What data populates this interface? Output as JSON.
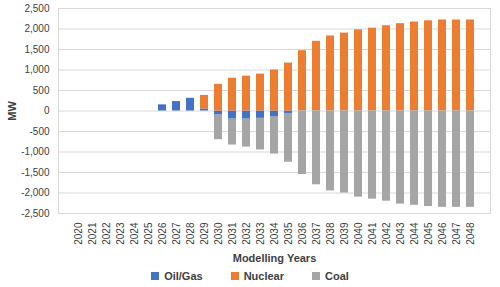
{
  "chart_data": {
    "type": "bar",
    "stacked": true,
    "grid": true,
    "legend": "bottom",
    "xlabel": "Modelling Years",
    "ylabel": "MW",
    "categories": [
      "2020",
      "2021",
      "2022",
      "2023",
      "2024",
      "2025",
      "2026",
      "2027",
      "2028",
      "2029",
      "2030",
      "2031",
      "2032",
      "2033",
      "2034",
      "2035",
      "2036",
      "2037",
      "2038",
      "2039",
      "2040",
      "2041",
      "2042",
      "2043",
      "2044",
      "2045",
      "2046",
      "2047",
      "2048"
    ],
    "series": [
      {
        "name": "Oil/Gas",
        "color": "#4472c4",
        "values": [
          0,
          0,
          0,
          0,
          0,
          0,
          150,
          230,
          310,
          50,
          -100,
          -200,
          -200,
          -180,
          -150,
          -60,
          0,
          0,
          0,
          0,
          0,
          0,
          0,
          0,
          0,
          0,
          0,
          0,
          0
        ]
      },
      {
        "name": "Nuclear",
        "color": "#ed7d31",
        "values": [
          0,
          0,
          0,
          0,
          0,
          0,
          0,
          0,
          0,
          330,
          650,
          800,
          850,
          900,
          1000,
          1170,
          1470,
          1700,
          1830,
          1900,
          1980,
          2020,
          2080,
          2130,
          2170,
          2200,
          2220,
          2220,
          2220
        ]
      },
      {
        "name": "Coal",
        "color": "#a5a5a5",
        "values": [
          0,
          0,
          0,
          0,
          0,
          0,
          0,
          0,
          0,
          0,
          -600,
          -630,
          -680,
          -770,
          -900,
          -1190,
          -1550,
          -1800,
          -1950,
          -2000,
          -2100,
          -2150,
          -2200,
          -2270,
          -2300,
          -2330,
          -2350,
          -2350,
          -2350
        ]
      }
    ],
    "ylim": [
      -2500,
      2500
    ],
    "yticks": [
      {
        "value": -2500,
        "label": "-2,500"
      },
      {
        "value": -2000,
        "label": "-2,000"
      },
      {
        "value": -1500,
        "label": "-1,500"
      },
      {
        "value": -1000,
        "label": "-1,000"
      },
      -500,
      0,
      500,
      {
        "value": 1000,
        "label": "1,000"
      },
      {
        "value": 1500,
        "label": "1,500"
      },
      {
        "value": 2000,
        "label": "2,000"
      },
      {
        "value": 2500,
        "label": "2,500"
      }
    ]
  }
}
